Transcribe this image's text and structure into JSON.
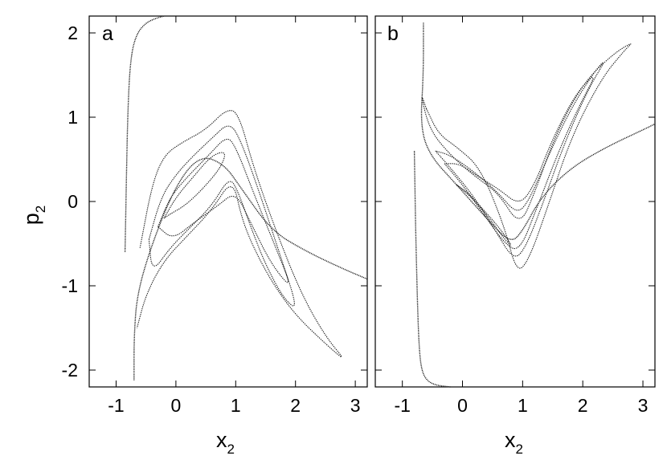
{
  "chart_data": [
    {
      "type": "scatter",
      "panel_label": "a",
      "xlabel": "x",
      "xlabel_subscript": "2",
      "ylabel": "p",
      "ylabel_subscript": "2",
      "xlim": [
        -1.45,
        3.2
      ],
      "ylim": [
        -2.2,
        2.2
      ],
      "xticks": [
        "-1",
        "0",
        "1",
        "2",
        "3"
      ],
      "yticks": [
        "2",
        "1",
        "0",
        "-1",
        "-2"
      ],
      "grid": false,
      "series": [
        {
          "x": [
            -0.85,
            -0.83,
            -0.8,
            -0.75,
            -0.65,
            -0.5,
            -0.35,
            -0.2
          ],
          "y": [
            -0.6,
            0.2,
            1.2,
            1.75,
            2.0,
            2.12,
            2.17,
            2.2
          ]
        },
        {
          "x": [
            -0.7,
            -0.7,
            -0.65,
            -0.4,
            0.0,
            0.4,
            0.8,
            1.1,
            1.6,
            2.2,
            2.8,
            3.2
          ],
          "y": [
            -2.12,
            -1.6,
            -1.1,
            -0.5,
            0.2,
            0.55,
            0.45,
            0.15,
            -0.35,
            -0.6,
            -0.8,
            -0.92
          ]
        },
        {
          "x": [
            -0.6,
            -0.4,
            -0.2,
            0.1,
            0.5,
            0.85,
            1.05,
            1.3,
            1.7,
            2.1,
            2.5,
            2.85,
            2.55,
            2.0,
            1.6,
            1.3,
            1.1,
            0.95,
            0.6,
            0.2,
            -0.2,
            -0.5,
            -0.65
          ],
          "y": [
            -0.55,
            0.2,
            0.55,
            0.7,
            0.85,
            1.1,
            1.05,
            0.4,
            -0.4,
            -1.1,
            -1.6,
            -1.9,
            -1.72,
            -1.35,
            -0.95,
            -0.55,
            -0.2,
            0.28,
            -0.1,
            -0.4,
            -0.7,
            -1.1,
            -1.5
          ]
        },
        {
          "x": [
            -0.45,
            -0.25,
            0.0,
            0.3,
            0.6,
            0.9,
            1.1,
            1.4,
            1.75,
            2.05,
            1.8,
            1.5,
            1.25,
            1.05,
            0.9,
            0.6,
            0.25,
            -0.1,
            -0.4,
            -0.45
          ],
          "y": [
            -0.45,
            0.05,
            0.32,
            0.55,
            0.75,
            0.95,
            0.7,
            0.1,
            -0.65,
            -1.3,
            -1.15,
            -0.75,
            -0.3,
            0.1,
            0.3,
            -0.05,
            -0.3,
            -0.55,
            -0.85,
            -0.45
          ]
        },
        {
          "x": [
            -0.3,
            -0.1,
            0.2,
            0.55,
            0.85,
            1.0,
            1.3,
            1.7,
            1.95,
            1.6,
            1.25,
            1.0,
            0.7,
            0.3,
            -0.05,
            -0.3
          ],
          "y": [
            -0.3,
            0.05,
            0.3,
            0.55,
            0.78,
            0.65,
            0.1,
            -0.6,
            -1.05,
            -0.75,
            -0.25,
            0.12,
            -0.05,
            -0.25,
            -0.45,
            -0.3
          ]
        },
        {
          "x": [
            -0.2,
            0.0,
            0.3,
            0.6,
            0.85,
            0.75,
            0.45,
            0.15,
            -0.1,
            -0.2
          ],
          "y": [
            -0.2,
            0.05,
            0.3,
            0.55,
            0.6,
            0.4,
            0.15,
            -0.05,
            -0.15,
            -0.2
          ]
        }
      ]
    },
    {
      "type": "scatter",
      "panel_label": "b",
      "xlabel": "x",
      "xlabel_subscript": "2",
      "ylabel": "",
      "ylabel_subscript": "",
      "xlim": [
        -1.45,
        3.2
      ],
      "ylim": [
        -2.2,
        2.2
      ],
      "xticks": [
        "-1",
        "0",
        "1",
        "2",
        "3"
      ],
      "yticks": [],
      "grid": false,
      "series": [
        {
          "x": [
            -0.8,
            -0.78,
            -0.75,
            -0.72,
            -0.68,
            -0.6,
            -0.45,
            -0.2
          ],
          "y": [
            0.6,
            -0.3,
            -1.2,
            -1.75,
            -2.0,
            -2.12,
            -2.18,
            -2.2
          ]
        },
        {
          "x": [
            -0.65,
            -0.65,
            -0.7,
            -0.55,
            -0.1,
            0.4,
            0.8,
            1.0,
            1.3,
            1.8,
            2.4,
            3.0,
            3.2
          ],
          "y": [
            2.12,
            1.5,
            0.9,
            0.55,
            0.2,
            -0.2,
            -0.5,
            -0.35,
            0.05,
            0.4,
            0.65,
            0.85,
            0.92
          ]
        },
        {
          "x": [
            -0.6,
            -0.4,
            -0.1,
            0.3,
            0.7,
            0.9,
            1.1,
            1.4,
            1.8,
            2.3,
            2.7,
            2.85,
            2.5,
            2.0,
            1.55,
            1.2,
            0.95,
            0.6,
            0.2,
            -0.2,
            -0.55,
            -0.7,
            -0.6
          ],
          "y": [
            1.1,
            0.8,
            0.65,
            0.4,
            -0.3,
            -0.85,
            -0.7,
            -0.1,
            0.75,
            1.45,
            1.8,
            1.9,
            1.75,
            1.4,
            0.8,
            0.1,
            -0.3,
            0.1,
            0.3,
            0.55,
            0.85,
            1.3,
            1.1
          ]
        },
        {
          "x": [
            -0.45,
            -0.2,
            0.2,
            0.55,
            0.85,
            1.05,
            1.35,
            1.7,
            2.1,
            2.4,
            2.2,
            1.8,
            1.4,
            1.1,
            0.9,
            0.6,
            0.2,
            -0.2,
            -0.45
          ],
          "y": [
            0.6,
            0.4,
            0.05,
            -0.35,
            -0.7,
            -0.55,
            0.0,
            0.7,
            1.35,
            1.7,
            1.55,
            1.1,
            0.5,
            0.0,
            -0.15,
            0.1,
            0.35,
            0.55,
            0.6
          ]
        },
        {
          "x": [
            -0.3,
            0.0,
            0.35,
            0.7,
            0.95,
            1.25,
            1.6,
            1.95,
            2.25,
            1.9,
            1.5,
            1.2,
            0.95,
            0.6,
            0.25,
            -0.05,
            -0.3
          ],
          "y": [
            0.45,
            0.2,
            -0.15,
            -0.5,
            -0.6,
            -0.05,
            0.6,
            1.15,
            1.55,
            1.3,
            0.75,
            0.2,
            -0.05,
            0.15,
            0.3,
            0.45,
            0.45
          ]
        },
        {
          "x": [
            -0.1,
            0.15,
            0.45,
            0.7,
            0.85,
            0.6,
            0.35,
            0.1,
            -0.1
          ],
          "y": [
            0.2,
            0.05,
            -0.2,
            -0.45,
            -0.55,
            -0.3,
            -0.1,
            0.1,
            0.2
          ]
        }
      ]
    }
  ]
}
